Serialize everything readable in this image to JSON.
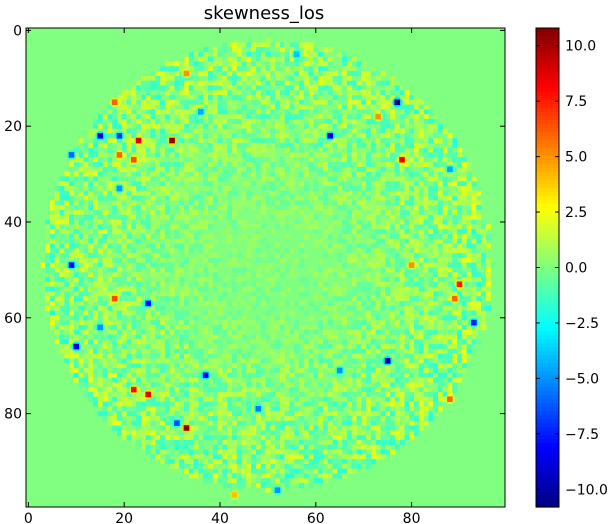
{
  "chart_data": {
    "type": "heatmap",
    "title": "skewness_los",
    "xlabel": "",
    "ylabel": "",
    "grid": false,
    "x_range": [
      -0.5,
      99.5
    ],
    "y_range": [
      -0.5,
      99.5
    ],
    "y_inverted": true,
    "x_ticks": [
      0,
      20,
      40,
      60,
      80
    ],
    "y_ticks": [
      0,
      20,
      40,
      60,
      80
    ],
    "colormap": "jet",
    "colorbar": {
      "range": [
        -10.8,
        10.8
      ],
      "ticks": [
        10.0,
        7.5,
        5.0,
        2.5,
        0.0,
        -2.5,
        -5.0,
        -7.5,
        -10.0
      ],
      "tick_labels": [
        "10.0",
        "7.5",
        "5.0",
        "2.5",
        "0.0",
        "−2.5",
        "−5.0",
        "−7.5",
        "−10.0"
      ]
    },
    "background_value": 0.0,
    "annulus_region": {
      "center": [
        50,
        49
      ],
      "inner_radius": 10,
      "outer_radius": 47
    },
    "hot_spots": [
      {
        "x": 77,
        "y": 15,
        "value": -10.5
      },
      {
        "x": 63,
        "y": 22,
        "value": -9.0
      },
      {
        "x": 30,
        "y": 23,
        "value": 10.5
      },
      {
        "x": 23,
        "y": 23,
        "value": 9.0
      },
      {
        "x": 15,
        "y": 22,
        "value": -8.5
      },
      {
        "x": 19,
        "y": 22,
        "value": -7.0
      },
      {
        "x": 78,
        "y": 27,
        "value": 8.5
      },
      {
        "x": 9,
        "y": 26,
        "value": -6.0
      },
      {
        "x": 19,
        "y": 26,
        "value": 6.0
      },
      {
        "x": 22,
        "y": 27,
        "value": 6.5
      },
      {
        "x": 33,
        "y": 9,
        "value": 5.0
      },
      {
        "x": 18,
        "y": 15,
        "value": 6.0
      },
      {
        "x": 73,
        "y": 18,
        "value": 5.0
      },
      {
        "x": 9,
        "y": 49,
        "value": -8.0
      },
      {
        "x": 25,
        "y": 57,
        "value": -8.0
      },
      {
        "x": 18,
        "y": 56,
        "value": 6.5
      },
      {
        "x": 10,
        "y": 66,
        "value": -8.5
      },
      {
        "x": 90,
        "y": 53,
        "value": 7.5
      },
      {
        "x": 89,
        "y": 56,
        "value": 6.0
      },
      {
        "x": 93,
        "y": 61,
        "value": -7.5
      },
      {
        "x": 75,
        "y": 69,
        "value": -10.0
      },
      {
        "x": 37,
        "y": 72,
        "value": -8.0
      },
      {
        "x": 22,
        "y": 75,
        "value": 8.0
      },
      {
        "x": 25,
        "y": 76,
        "value": 8.5
      },
      {
        "x": 33,
        "y": 83,
        "value": 10.5
      },
      {
        "x": 31,
        "y": 82,
        "value": -6.5
      },
      {
        "x": 88,
        "y": 77,
        "value": 6.0
      },
      {
        "x": 48,
        "y": 79,
        "value": -5.5
      },
      {
        "x": 52,
        "y": 96,
        "value": -5.0
      },
      {
        "x": 65,
        "y": 71,
        "value": -5.0
      },
      {
        "x": 80,
        "y": 49,
        "value": 5.0
      },
      {
        "x": 15,
        "y": 62,
        "value": -5.0
      },
      {
        "x": 19,
        "y": 33,
        "value": -5.0
      },
      {
        "x": 88,
        "y": 29,
        "value": -4.5
      },
      {
        "x": 36,
        "y": 17,
        "value": -4.5
      },
      {
        "x": 56,
        "y": 5,
        "value": -4.0
      },
      {
        "x": 43,
        "y": 97,
        "value": 4.0
      }
    ]
  }
}
